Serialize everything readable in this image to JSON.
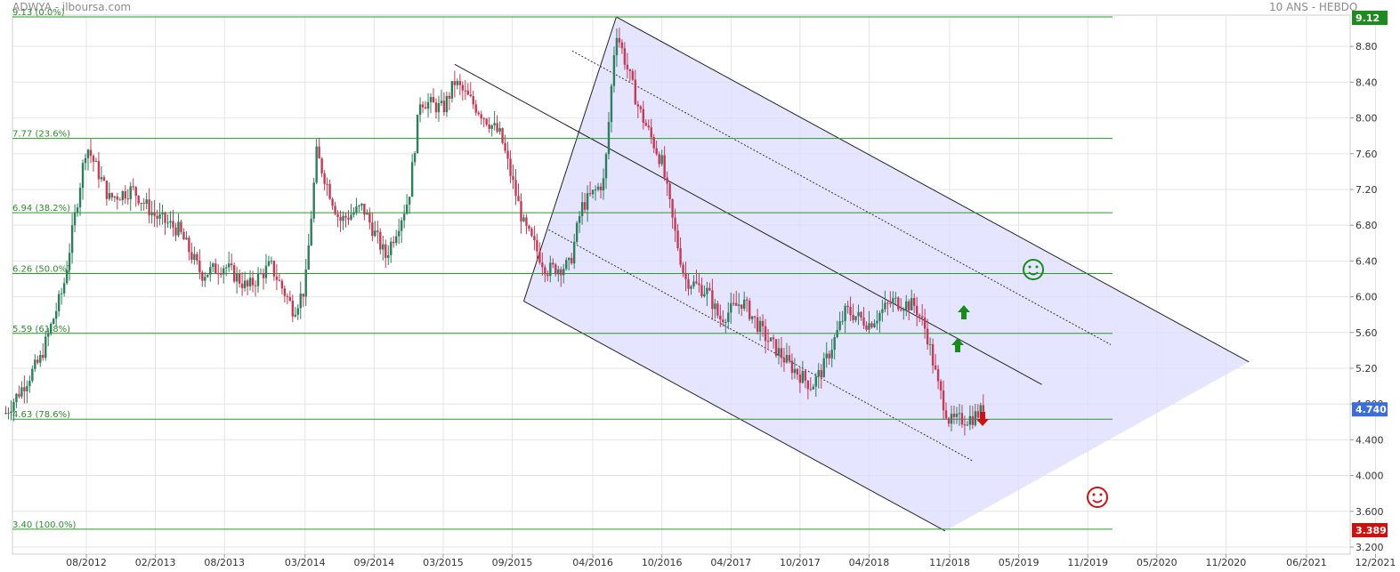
{
  "header": {
    "left": "ADWYA - ilboursa.com",
    "right": "10 ANS - HEBDO"
  },
  "chart_data": {
    "type": "line",
    "chart_style": "weekly candlestick price chart with Fibonacci retracement levels and Andrews pitchfork channel",
    "x_ticks": [
      "08/2012",
      "02/2013",
      "08/2013",
      "03/2014",
      "09/2014",
      "03/2015",
      "09/2015",
      "04/2016",
      "10/2016",
      "04/2017",
      "10/2017",
      "04/2018",
      "11/2018",
      "05/2019",
      "11/2019",
      "05/2020",
      "11/2020",
      "06/2021",
      "12/2021"
    ],
    "y_ticks": [
      "3.200",
      "3.600",
      "4.000",
      "4.400",
      "4.800",
      "5.20",
      "5.60",
      "6.00",
      "6.40",
      "6.80",
      "7.20",
      "7.60",
      "8.00",
      "8.40",
      "8.80"
    ],
    "ylim": [
      3.12,
      9.15
    ],
    "grid": true,
    "fibonacci_levels": [
      {
        "value": 9.13,
        "label": "9.13 (0.0%)"
      },
      {
        "value": 7.77,
        "label": "7.77 (23.6%)"
      },
      {
        "value": 6.94,
        "label": "6.94 (38.2%)"
      },
      {
        "value": 6.26,
        "label": "6.26 (50.0%)"
      },
      {
        "value": 5.59,
        "label": "5.59 (61.8%)"
      },
      {
        "value": 4.63,
        "label": "4.63 (78.6%)"
      },
      {
        "value": 3.4,
        "label": "3.40 (100.0%)"
      }
    ],
    "price_badges": [
      {
        "value": 9.12,
        "label": "9.12",
        "color": "#1f8a1f"
      },
      {
        "value": 4.74,
        "label": "4.740",
        "color": "#3b6fd8"
      },
      {
        "value": 3.389,
        "label": "3.389",
        "color": "#cc1111"
      }
    ],
    "approx_close_path": [
      {
        "x": "2012-01",
        "y": 4.7
      },
      {
        "x": "2012-04",
        "y": 5.3
      },
      {
        "x": "2012-06",
        "y": 6.1
      },
      {
        "x": "2012-08",
        "y": 7.7
      },
      {
        "x": "2012-10",
        "y": 7.1
      },
      {
        "x": "2012-12",
        "y": 7.2
      },
      {
        "x": "2013-02",
        "y": 6.9
      },
      {
        "x": "2013-04",
        "y": 6.75
      },
      {
        "x": "2013-06",
        "y": 6.25
      },
      {
        "x": "2013-08",
        "y": 6.35
      },
      {
        "x": "2013-10",
        "y": 6.1
      },
      {
        "x": "2013-12",
        "y": 6.35
      },
      {
        "x": "2014-02",
        "y": 5.85
      },
      {
        "x": "2014-03",
        "y": 6.1
      },
      {
        "x": "2014-04",
        "y": 7.6
      },
      {
        "x": "2014-06",
        "y": 6.85
      },
      {
        "x": "2014-08",
        "y": 7.0
      },
      {
        "x": "2014-10",
        "y": 6.45
      },
      {
        "x": "2014-12",
        "y": 7.1
      },
      {
        "x": "2015-01",
        "y": 8.2
      },
      {
        "x": "2015-03",
        "y": 8.1
      },
      {
        "x": "2015-04",
        "y": 8.4
      },
      {
        "x": "2015-06",
        "y": 8.1
      },
      {
        "x": "2015-08",
        "y": 7.8
      },
      {
        "x": "2015-10",
        "y": 6.8
      },
      {
        "x": "2015-12",
        "y": 6.3
      },
      {
        "x": "2016-02",
        "y": 6.35
      },
      {
        "x": "2016-03",
        "y": 7.0
      },
      {
        "x": "2016-05",
        "y": 7.3
      },
      {
        "x": "2016-06",
        "y": 9.0
      },
      {
        "x": "2016-08",
        "y": 8.1
      },
      {
        "x": "2016-10",
        "y": 7.5
      },
      {
        "x": "2016-11",
        "y": 6.8
      },
      {
        "x": "2016-12",
        "y": 6.2
      },
      {
        "x": "2017-02",
        "y": 6.05
      },
      {
        "x": "2017-03",
        "y": 5.75
      },
      {
        "x": "2017-05",
        "y": 5.95
      },
      {
        "x": "2017-07",
        "y": 5.55
      },
      {
        "x": "2017-09",
        "y": 5.25
      },
      {
        "x": "2017-11",
        "y": 5.0
      },
      {
        "x": "2017-12",
        "y": 5.2
      },
      {
        "x": "2018-02",
        "y": 5.85
      },
      {
        "x": "2018-04",
        "y": 5.7
      },
      {
        "x": "2018-06",
        "y": 5.95
      },
      {
        "x": "2018-08",
        "y": 5.9
      },
      {
        "x": "2018-09",
        "y": 5.6
      },
      {
        "x": "2018-10",
        "y": 5.0
      },
      {
        "x": "2018-11",
        "y": 4.6
      },
      {
        "x": "2019-01",
        "y": 4.65
      },
      {
        "x": "2019-02",
        "y": 4.74
      }
    ]
  },
  "annotations": {
    "arrows_up_color": "#1a8a1a",
    "arrow_down_color": "#cc1111",
    "smiley_happy_color": "#1a8a1a",
    "smiley_sad_color": "#cc1111",
    "channel_fill_color": "#dcdcff"
  }
}
